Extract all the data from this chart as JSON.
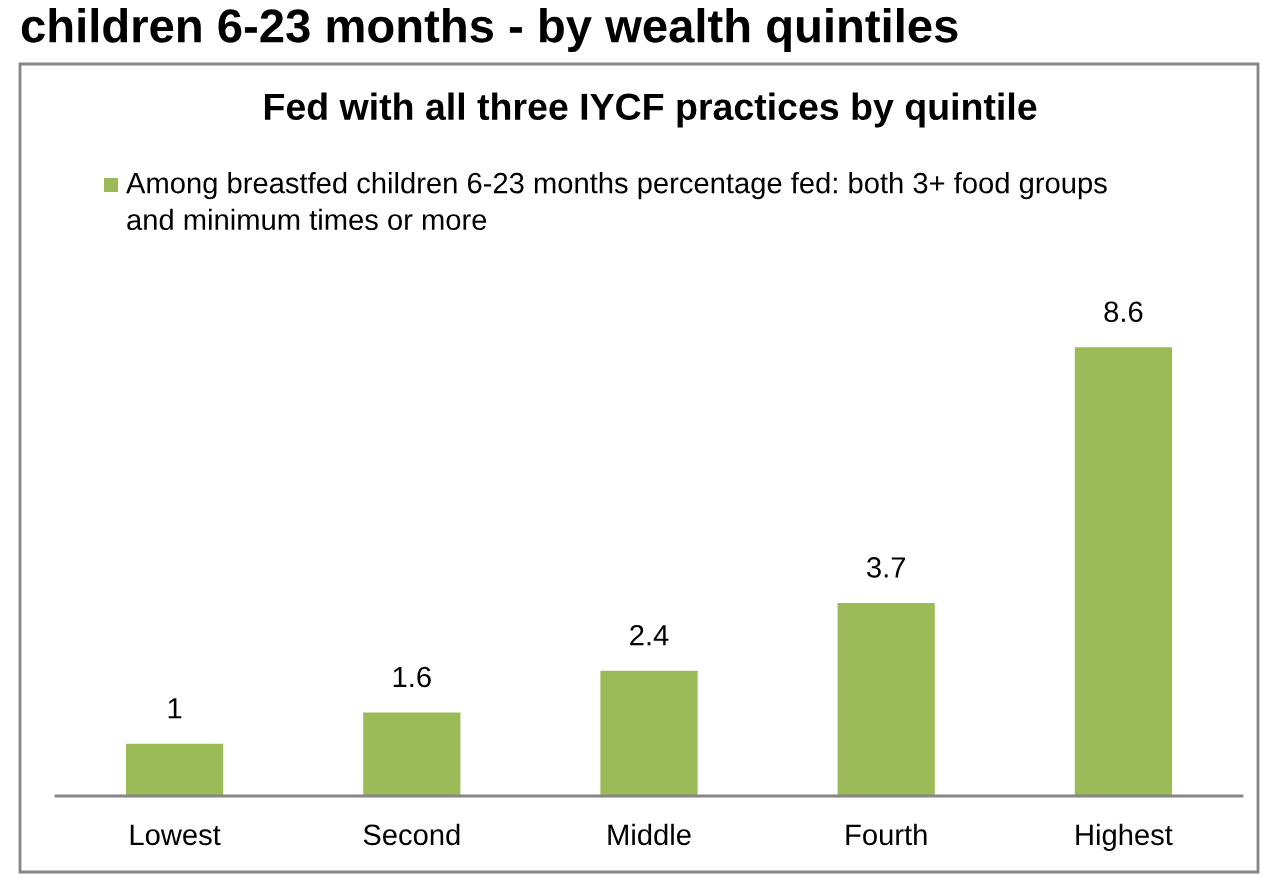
{
  "chart_data": {
    "type": "bar",
    "title": "children 6-23 months - by wealth quintiles",
    "subtitle": "Fed with all three IYCF practices by quintile",
    "categories": [
      "Lowest",
      "Second",
      "Middle",
      "Fourth",
      "Highest"
    ],
    "series": [
      {
        "name": "Among breastfed children 6-23 months percentage fed: both 3+ food groups and minimum times or more",
        "color": "#9bbb59",
        "values": [
          1,
          1.6,
          2.4,
          3.7,
          8.6
        ]
      }
    ],
    "data_labels": true,
    "legend": "top left",
    "tick_labels": "x"
  }
}
